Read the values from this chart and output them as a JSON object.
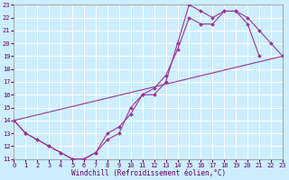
{
  "xlabel": "Windchill (Refroidissement éolien,°C)",
  "xlim": [
    0,
    23
  ],
  "ylim": [
    11,
    23
  ],
  "xticks": [
    0,
    1,
    2,
    3,
    4,
    5,
    6,
    7,
    8,
    9,
    10,
    11,
    12,
    13,
    14,
    15,
    16,
    17,
    18,
    19,
    20,
    21,
    22,
    23
  ],
  "yticks": [
    11,
    12,
    13,
    14,
    15,
    16,
    17,
    18,
    19,
    20,
    21,
    22,
    23
  ],
  "bg_color": "#cceeff",
  "line_color": "#993399",
  "grid_color": "#ffffff",
  "line1_x": [
    0,
    1,
    2,
    3,
    4,
    5,
    6,
    7,
    8,
    9,
    10,
    11,
    12,
    13,
    14,
    15,
    16,
    17,
    18,
    19,
    20,
    21
  ],
  "line1_y": [
    14,
    13,
    12.5,
    12,
    11.5,
    11,
    11,
    11.5,
    13,
    13.5,
    14.5,
    16,
    16.5,
    17.5,
    19.5,
    22,
    21.5,
    21.5,
    22.5,
    22.5,
    21.5,
    19
  ],
  "line2_x": [
    0,
    1,
    2,
    3,
    4,
    5,
    6,
    7,
    8,
    9,
    10,
    11,
    12,
    13,
    14,
    15,
    16,
    17,
    18,
    19,
    20,
    21,
    22,
    23
  ],
  "line2_y": [
    14,
    13,
    12.5,
    12,
    11.5,
    11,
    11,
    11.5,
    12.5,
    13,
    15,
    16,
    16,
    17,
    20,
    23,
    22.5,
    22,
    22.5,
    22.5,
    22,
    21,
    20,
    19
  ],
  "line3_x": [
    0,
    23
  ],
  "line3_y": [
    14,
    19
  ]
}
